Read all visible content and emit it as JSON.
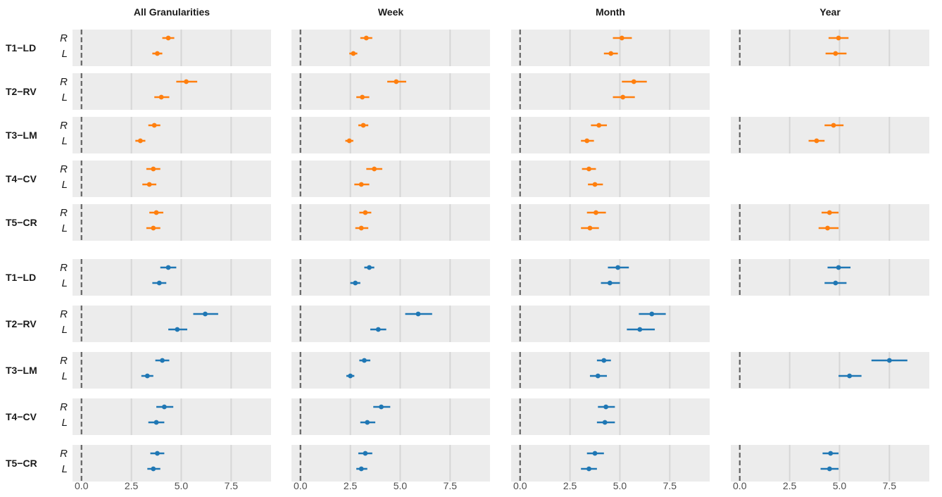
{
  "chart_data": {
    "type": "forest-plot",
    "facet_columns": [
      "All Granularities",
      "Week",
      "Month",
      "Year"
    ],
    "x_ticks": [
      0,
      2.5,
      5,
      7.5
    ],
    "x_tick_labels": [
      "0.0",
      "2.5",
      "5.0",
      "7.5"
    ],
    "xlim": [
      -0.45,
      9.5
    ],
    "reference_line": 0,
    "grid": true,
    "colors": {
      "group1": "#ff7f0e",
      "group2": "#1f77b4",
      "panel": "#ececec",
      "grid": "#d6d6d6",
      "reference": "#636363"
    },
    "side_labels": [
      "R",
      "L"
    ],
    "groups": [
      {
        "color": "#ff7f0e",
        "tasks": [
          {
            "label": "T1−LD",
            "panels": [
              {
                "R": [
                  4.35,
                  4.05,
                  4.65
                ],
                "L": [
                  3.8,
                  3.55,
                  4.05
                ]
              },
              {
                "R": [
                  3.3,
                  3.0,
                  3.6
                ],
                "L": [
                  2.65,
                  2.45,
                  2.85
                ]
              },
              {
                "R": [
                  5.1,
                  4.65,
                  5.6
                ],
                "L": [
                  4.55,
                  4.2,
                  4.9
                ]
              },
              {
                "R": [
                  4.95,
                  4.45,
                  5.45
                ],
                "L": [
                  4.8,
                  4.3,
                  5.35
                ]
              }
            ]
          },
          {
            "label": "T2−RV",
            "panels": [
              {
                "R": [
                  5.25,
                  4.75,
                  5.8
                ],
                "L": [
                  4.0,
                  3.65,
                  4.4
                ]
              },
              {
                "R": [
                  4.8,
                  4.35,
                  5.3
                ],
                "L": [
                  3.1,
                  2.8,
                  3.45
                ]
              },
              {
                "R": [
                  5.7,
                  5.1,
                  6.35
                ],
                "L": [
                  5.15,
                  4.65,
                  5.75
                ]
              },
              null
            ]
          },
          {
            "label": "T3−LM",
            "panels": [
              {
                "R": [
                  3.65,
                  3.35,
                  3.95
                ],
                "L": [
                  2.95,
                  2.7,
                  3.2
                ]
              },
              {
                "R": [
                  3.15,
                  2.9,
                  3.4
                ],
                "L": [
                  2.45,
                  2.25,
                  2.65
                ]
              },
              {
                "R": [
                  3.95,
                  3.55,
                  4.35
                ],
                "L": [
                  3.35,
                  3.05,
                  3.7
                ]
              },
              {
                "R": [
                  4.7,
                  4.25,
                  5.2
                ],
                "L": [
                  3.85,
                  3.45,
                  4.25
                ]
              }
            ]
          },
          {
            "label": "T4−CV",
            "panels": [
              {
                "R": [
                  3.6,
                  3.25,
                  3.95
                ],
                "L": [
                  3.4,
                  3.05,
                  3.75
                ]
              },
              {
                "R": [
                  3.7,
                  3.3,
                  4.1
                ],
                "L": [
                  3.05,
                  2.7,
                  3.45
                ]
              },
              {
                "R": [
                  3.45,
                  3.1,
                  3.8
                ],
                "L": [
                  3.75,
                  3.4,
                  4.15
                ]
              },
              null
            ]
          },
          {
            "label": "T5−CR",
            "panels": [
              {
                "R": [
                  3.75,
                  3.4,
                  4.1
                ],
                "L": [
                  3.6,
                  3.25,
                  3.95
                ]
              },
              {
                "R": [
                  3.25,
                  2.95,
                  3.55
                ],
                "L": [
                  3.05,
                  2.75,
                  3.4
                ]
              },
              {
                "R": [
                  3.8,
                  3.35,
                  4.3
                ],
                "L": [
                  3.5,
                  3.05,
                  3.95
                ]
              },
              {
                "R": [
                  4.5,
                  4.1,
                  4.95
                ],
                "L": [
                  4.4,
                  3.95,
                  4.95
                ]
              }
            ]
          }
        ]
      },
      {
        "color": "#1f77b4",
        "tasks": [
          {
            "label": "T1−LD",
            "panels": [
              {
                "R": [
                  4.35,
                  3.95,
                  4.75
                ],
                "L": [
                  3.9,
                  3.55,
                  4.25
                ]
              },
              {
                "R": [
                  3.45,
                  3.2,
                  3.7
                ],
                "L": [
                  2.75,
                  2.5,
                  3.0
                ]
              },
              {
                "R": [
                  4.9,
                  4.4,
                  5.45
                ],
                "L": [
                  4.5,
                  4.05,
                  5.0
                ]
              },
              {
                "R": [
                  4.95,
                  4.4,
                  5.55
                ],
                "L": [
                  4.8,
                  4.25,
                  5.35
                ]
              }
            ]
          },
          {
            "label": "T2−RV",
            "panels": [
              {
                "R": [
                  6.2,
                  5.6,
                  6.85
                ],
                "L": [
                  4.8,
                  4.35,
                  5.3
                ]
              },
              {
                "R": [
                  5.9,
                  5.25,
                  6.6
                ],
                "L": [
                  3.9,
                  3.5,
                  4.3
                ]
              },
              {
                "R": [
                  6.6,
                  5.95,
                  7.3
                ],
                "L": [
                  6.0,
                  5.35,
                  6.75
                ]
              },
              null
            ]
          },
          {
            "label": "T3−LM",
            "panels": [
              {
                "R": [
                  4.05,
                  3.7,
                  4.4
                ],
                "L": [
                  3.3,
                  3.0,
                  3.6
                ]
              },
              {
                "R": [
                  3.2,
                  2.95,
                  3.5
                ],
                "L": [
                  2.5,
                  2.3,
                  2.7
                ]
              },
              {
                "R": [
                  4.2,
                  3.85,
                  4.55
                ],
                "L": [
                  3.9,
                  3.5,
                  4.35
                ]
              },
              {
                "R": [
                  7.5,
                  6.6,
                  8.4
                ],
                "L": [
                  5.5,
                  4.95,
                  6.1
                ]
              }
            ]
          },
          {
            "label": "T4−CV",
            "panels": [
              {
                "R": [
                  4.15,
                  3.75,
                  4.6
                ],
                "L": [
                  3.75,
                  3.35,
                  4.15
                ]
              },
              {
                "R": [
                  4.05,
                  3.65,
                  4.5
                ],
                "L": [
                  3.35,
                  3.0,
                  3.75
                ]
              },
              {
                "R": [
                  4.3,
                  3.9,
                  4.75
                ],
                "L": [
                  4.25,
                  3.85,
                  4.75
                ]
              },
              null
            ]
          },
          {
            "label": "T5−CR",
            "panels": [
              {
                "R": [
                  3.8,
                  3.45,
                  4.15
                ],
                "L": [
                  3.6,
                  3.3,
                  3.95
                ]
              },
              {
                "R": [
                  3.25,
                  2.9,
                  3.6
                ],
                "L": [
                  3.05,
                  2.8,
                  3.35
                ]
              },
              {
                "R": [
                  3.75,
                  3.35,
                  4.2
                ],
                "L": [
                  3.45,
                  3.05,
                  3.85
                ]
              },
              {
                "R": [
                  4.55,
                  4.15,
                  4.95
                ],
                "L": [
                  4.5,
                  4.05,
                  4.95
                ]
              }
            ]
          }
        ]
      }
    ]
  }
}
